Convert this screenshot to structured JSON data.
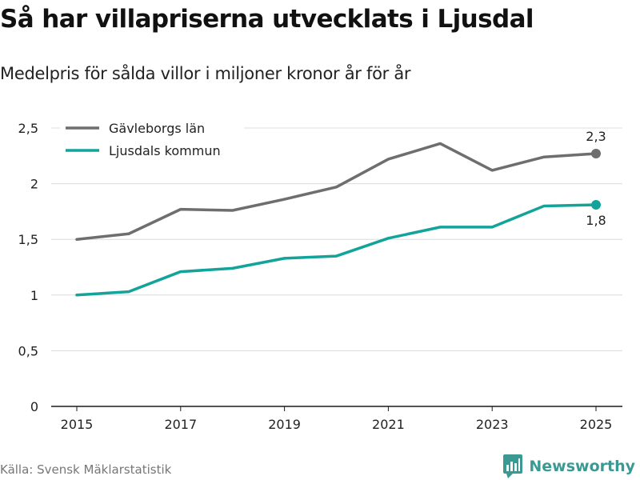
{
  "header": {
    "title": "Så har villapriserna utvecklats i Ljusdal",
    "subtitle": "Medelpris för sålda villor i miljoner kronor år för år"
  },
  "footer": {
    "source": "Källa: Svensk Mäklarstatistik",
    "brand": "Newsworthy",
    "brand_icon": "newsworthy-logo-icon",
    "brand_color": "#3a9a93"
  },
  "chart_data": {
    "type": "line",
    "title": "Så har villapriserna utvecklats i Ljusdal",
    "subtitle": "Medelpris för sålda villor i miljoner kronor år för år",
    "xlabel": "",
    "ylabel": "",
    "x": [
      2015,
      2016,
      2017,
      2018,
      2019,
      2020,
      2021,
      2022,
      2023,
      2024,
      2025
    ],
    "xticks": [
      "2015",
      "2017",
      "2019",
      "2021",
      "2023",
      "2025"
    ],
    "xtick_values": [
      2015,
      2017,
      2019,
      2021,
      2023,
      2025
    ],
    "ylim": [
      0,
      2.5
    ],
    "yticks": [
      0,
      0.5,
      1,
      1.5,
      2,
      2.5
    ],
    "ytick_labels": [
      "0",
      "0,5",
      "1",
      "1,5",
      "2",
      "2,5"
    ],
    "grid": true,
    "legend_position": "top-left",
    "series": [
      {
        "name": "Gävleborgs län",
        "color": "#6e6e6e",
        "values": [
          1.5,
          1.55,
          1.77,
          1.76,
          1.86,
          1.97,
          2.22,
          2.36,
          2.12,
          2.24,
          2.27
        ],
        "end_label": "2,3"
      },
      {
        "name": "Ljusdals kommun",
        "color": "#12a39a",
        "values": [
          1.0,
          1.03,
          1.21,
          1.24,
          1.33,
          1.35,
          1.51,
          1.61,
          1.61,
          1.8,
          1.81
        ],
        "end_label": "1,8"
      }
    ]
  }
}
